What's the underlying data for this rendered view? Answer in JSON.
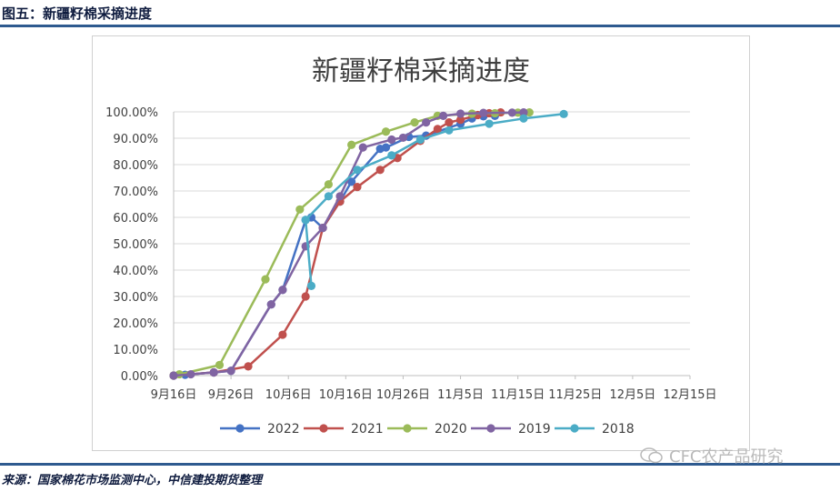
{
  "figure_title": "图五：新疆籽棉采摘进度",
  "source_note": "来源：国家棉花市场监测中心，中信建投期货整理",
  "watermark": "CFC农产品研究",
  "chart_data": {
    "type": "line",
    "title": "新疆籽棉采摘进度",
    "xlabel": "",
    "ylabel": "",
    "x_tick_labels": [
      "9月16日",
      "9月26日",
      "10月6日",
      "10月16日",
      "10月26日",
      "11月5日",
      "11月15日",
      "11月25日",
      "12月5日",
      "12月15日"
    ],
    "y_tick_labels": [
      "0.00%",
      "10.00%",
      "20.00%",
      "30.00%",
      "40.00%",
      "50.00%",
      "60.00%",
      "70.00%",
      "80.00%",
      "90.00%",
      "100.00%"
    ],
    "ylim": [
      0,
      100
    ],
    "xlim_days_from_sep16": [
      0,
      90
    ],
    "grid": true,
    "legend_position": "bottom",
    "series": [
      {
        "name": "2022",
        "color": "#4472c4",
        "points": [
          [
            0,
            0
          ],
          [
            2,
            0.3
          ],
          [
            7,
            1.2
          ],
          [
            10,
            1.8
          ],
          [
            17,
            27
          ],
          [
            19,
            32.5
          ],
          [
            23,
            59
          ],
          [
            24,
            60
          ],
          [
            26,
            56
          ],
          [
            29,
            66
          ],
          [
            31,
            73.5
          ],
          [
            36,
            86
          ],
          [
            37,
            86.5
          ],
          [
            41,
            90.5
          ],
          [
            44,
            91
          ],
          [
            50,
            95.5
          ],
          [
            52,
            97.5
          ],
          [
            54,
            98.3
          ],
          [
            56,
            98.5
          ]
        ]
      },
      {
        "name": "2021",
        "color": "#c0504d",
        "points": [
          [
            0,
            0
          ],
          [
            7,
            1.2
          ],
          [
            13,
            3.5
          ],
          [
            19,
            15.5
          ],
          [
            23,
            30
          ],
          [
            26,
            56
          ],
          [
            29,
            66
          ],
          [
            32,
            71.5
          ],
          [
            36,
            78
          ],
          [
            39,
            82.5
          ],
          [
            43,
            89
          ],
          [
            46,
            93.5
          ],
          [
            48,
            96
          ],
          [
            50,
            97
          ],
          [
            53,
            98.8
          ],
          [
            55,
            99.5
          ],
          [
            57,
            99.8
          ]
        ]
      },
      {
        "name": "2020",
        "color": "#9bbb59",
        "points": [
          [
            0,
            0
          ],
          [
            1,
            0.5
          ],
          [
            8,
            4
          ],
          [
            16,
            36.5
          ],
          [
            22,
            63
          ],
          [
            27,
            72.5
          ],
          [
            31,
            87.5
          ],
          [
            37,
            92.5
          ],
          [
            42,
            96
          ],
          [
            46,
            98.5
          ],
          [
            52,
            99.3
          ],
          [
            56,
            99.5
          ],
          [
            60,
            99.7
          ],
          [
            62,
            99.8
          ]
        ]
      },
      {
        "name": "2019",
        "color": "#8064a2",
        "points": [
          [
            0,
            0
          ],
          [
            3,
            0.5
          ],
          [
            7,
            1.2
          ],
          [
            10,
            1.8
          ],
          [
            17,
            27
          ],
          [
            19,
            32.5
          ],
          [
            23,
            49
          ],
          [
            26,
            56
          ],
          [
            29,
            68
          ],
          [
            33,
            86.5
          ],
          [
            38,
            89.5
          ],
          [
            40,
            90.2
          ],
          [
            44,
            96
          ],
          [
            47,
            98.5
          ],
          [
            50,
            99.3
          ],
          [
            54,
            99.6
          ],
          [
            59,
            99.7
          ],
          [
            61,
            99.8
          ]
        ]
      },
      {
        "name": "2018",
        "color": "#4bacc6",
        "points": [
          [
            24,
            34
          ],
          [
            23,
            59
          ],
          [
            27,
            68
          ],
          [
            32,
            78
          ],
          [
            38,
            83.5
          ],
          [
            43,
            89.5
          ],
          [
            48,
            93
          ],
          [
            55,
            95.5
          ],
          [
            61,
            97.5
          ],
          [
            68,
            99.2
          ]
        ]
      }
    ]
  }
}
